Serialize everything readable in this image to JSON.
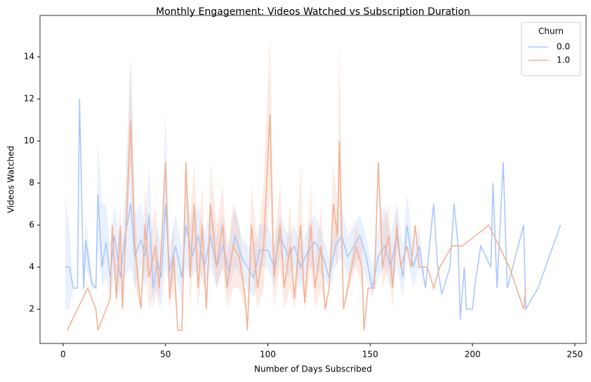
{
  "chart_data": {
    "type": "line",
    "title": "Monthly Engagement: Videos Watched vs Subscription Duration",
    "x_label": "Number of Days Subscribed",
    "y_label": "Videos Watched",
    "legend_title": "Churn",
    "legend": "upper right",
    "xlim": [
      -11.3,
      255.5
    ],
    "ylim": [
      0.37,
      15.97
    ],
    "xticks": [
      0,
      50,
      100,
      150,
      200,
      250
    ],
    "yticks": [
      2,
      4,
      6,
      8,
      10,
      12,
      14
    ],
    "series": [
      {
        "name": "0.0",
        "color": "#aac7fd",
        "x": [
          1,
          3,
          5,
          7,
          8,
          10,
          11,
          14,
          16,
          17,
          19,
          21,
          23,
          25,
          28,
          30,
          33,
          35,
          38,
          40,
          42,
          44,
          46,
          48,
          50,
          52,
          55,
          58,
          60,
          63,
          66,
          69,
          72,
          75,
          78,
          81,
          84,
          87,
          90,
          93,
          96,
          100,
          103,
          106,
          110,
          113,
          116,
          120,
          123,
          127,
          130,
          133,
          136,
          139,
          142,
          145,
          148,
          151,
          154,
          157,
          160,
          163,
          166,
          168,
          171,
          174,
          177,
          181,
          183,
          185,
          189,
          191,
          193,
          194,
          196,
          197,
          200,
          201,
          204,
          209,
          210,
          212,
          215,
          217,
          225,
          226,
          232,
          243
        ],
        "values": [
          4,
          4,
          3,
          3,
          12,
          3,
          5.3,
          3.2,
          3,
          7.5,
          4,
          5.2,
          3.5,
          5.5,
          3.5,
          5.3,
          7,
          4.5,
          5.3,
          4.5,
          6.5,
          3,
          4.3,
          3.5,
          7,
          3.8,
          5,
          3.5,
          6,
          4.5,
          5.5,
          4,
          5.5,
          4,
          5,
          3.8,
          5.5,
          4.5,
          4,
          3.5,
          4.8,
          4.8,
          4,
          5.5,
          4.5,
          5,
          4,
          4.8,
          5.2,
          4.5,
          3.5,
          5,
          5.5,
          4.5,
          5,
          5.5,
          4.5,
          3,
          4.5,
          5,
          4,
          5.5,
          3.5,
          6,
          4,
          5,
          3,
          7,
          4,
          2.7,
          4,
          7,
          5,
          1.5,
          4,
          2,
          2,
          3,
          5,
          4,
          8,
          3,
          9,
          3,
          6,
          2,
          3,
          6
        ],
        "ci_lower": [
          2,
          2,
          3,
          3,
          12,
          2,
          4,
          3,
          3,
          5,
          3,
          3.5,
          2.5,
          3.5,
          2.5,
          3.5,
          4,
          3,
          4,
          3,
          4,
          2,
          3,
          2,
          4,
          3,
          3.5,
          2.5,
          4,
          3.5,
          4,
          3,
          4,
          3,
          4,
          3,
          4,
          3.5,
          3,
          2.5,
          4,
          4,
          3,
          4.5,
          3.5,
          4,
          3,
          4,
          4,
          3.5,
          3,
          4,
          4.5,
          3.5,
          4,
          4.5,
          3.5,
          2.5,
          3.5,
          4,
          3,
          4,
          2.5,
          4.5,
          3,
          4,
          3,
          7,
          4,
          2.7,
          4,
          7,
          5,
          1.5,
          4,
          2,
          2,
          3,
          5,
          4,
          8,
          3,
          9,
          3,
          6,
          2,
          3,
          6
        ],
        "ci_upper": [
          7.2,
          6,
          3,
          3,
          12,
          4,
          6.5,
          3.5,
          3,
          10,
          7,
          7,
          5,
          7,
          5,
          7,
          14,
          6.5,
          7,
          6,
          9,
          4.5,
          6,
          5,
          11.5,
          5,
          6.5,
          5,
          8,
          6,
          7,
          5.5,
          7,
          5.5,
          6.5,
          5,
          7,
          5.5,
          5,
          5,
          6,
          6,
          5,
          6.5,
          5.5,
          6,
          5,
          6,
          6.5,
          5.5,
          4.5,
          6,
          7,
          5.5,
          6,
          6.5,
          5.5,
          4,
          6,
          7,
          5.5,
          7,
          5,
          7.5,
          5,
          6,
          3,
          7,
          4,
          2.7,
          4,
          7,
          5,
          1.5,
          4,
          2,
          2,
          3,
          5,
          4,
          8,
          3,
          9,
          3,
          6,
          2,
          3,
          6
        ]
      },
      {
        "name": "1.0",
        "color": "#f4b194",
        "x": [
          2,
          12,
          16,
          17,
          23,
          24,
          26,
          28,
          29,
          33,
          35,
          38,
          40,
          42,
          45,
          47,
          50,
          52,
          54,
          56,
          58,
          60,
          62,
          64,
          66,
          68,
          70,
          72,
          75,
          78,
          80,
          83,
          86,
          89,
          90,
          92,
          95,
          98,
          101,
          103,
          106,
          108,
          111,
          113,
          116,
          118,
          121,
          123,
          126,
          128,
          130,
          132,
          134,
          135,
          137,
          140,
          143,
          146,
          147,
          149,
          152,
          154,
          156,
          159,
          161,
          163,
          165,
          168,
          170,
          172,
          174,
          178,
          181,
          184,
          190,
          195,
          208,
          218,
          225,
          226
        ],
        "values": [
          1,
          3,
          2,
          1,
          2.5,
          6,
          2.5,
          6,
          2,
          11,
          5,
          2,
          6,
          3.5,
          5,
          3,
          9,
          2.5,
          4.5,
          1,
          1,
          9,
          3.5,
          7,
          3,
          6,
          2,
          7,
          4,
          6,
          3,
          5,
          4.5,
          2.5,
          1,
          6,
          3,
          5,
          11.3,
          3.5,
          6,
          3,
          5,
          2.5,
          6,
          2.3,
          6,
          3,
          5,
          2,
          3,
          7,
          5.5,
          10,
          2,
          3.5,
          5,
          4,
          1,
          3,
          3,
          9,
          4,
          5.5,
          3,
          6,
          4,
          5,
          4,
          6,
          4,
          4,
          3,
          4,
          5,
          5,
          6,
          4,
          2,
          3
        ],
        "ci_lower": [
          1,
          3,
          2,
          1,
          2.5,
          6,
          2,
          4,
          2,
          9,
          3,
          2,
          4,
          2,
          3,
          2,
          9,
          2,
          3,
          1,
          1,
          9,
          2,
          5,
          2,
          4,
          2,
          5,
          3,
          4,
          2,
          3,
          3,
          2,
          1,
          4,
          2,
          3,
          8,
          2,
          4,
          2,
          3,
          2,
          4,
          2,
          4,
          2,
          3,
          2,
          3,
          5,
          4,
          7,
          2,
          3,
          4,
          3,
          1,
          3,
          3,
          9,
          3,
          4,
          2,
          5,
          4,
          5,
          4,
          6,
          4,
          4,
          3,
          4,
          5,
          5,
          6,
          4,
          2,
          3
        ],
        "ci_upper": [
          1,
          3,
          2,
          1,
          2.5,
          6,
          4,
          7,
          2,
          14,
          7,
          2,
          8,
          5,
          7,
          4,
          9,
          4,
          6,
          1,
          1,
          9,
          6,
          9,
          5,
          8,
          2,
          9,
          6,
          8,
          4.5,
          7,
          6,
          3,
          1,
          8,
          5,
          8,
          15,
          5,
          8,
          4,
          7,
          3,
          9,
          3,
          8,
          4,
          7,
          2,
          3,
          9,
          7,
          15,
          2,
          4,
          6,
          5,
          1,
          3,
          3,
          9,
          6,
          7,
          4,
          7,
          4,
          5,
          4,
          6,
          4,
          4,
          3,
          4,
          5,
          5,
          6,
          4,
          2,
          3
        ]
      }
    ]
  }
}
